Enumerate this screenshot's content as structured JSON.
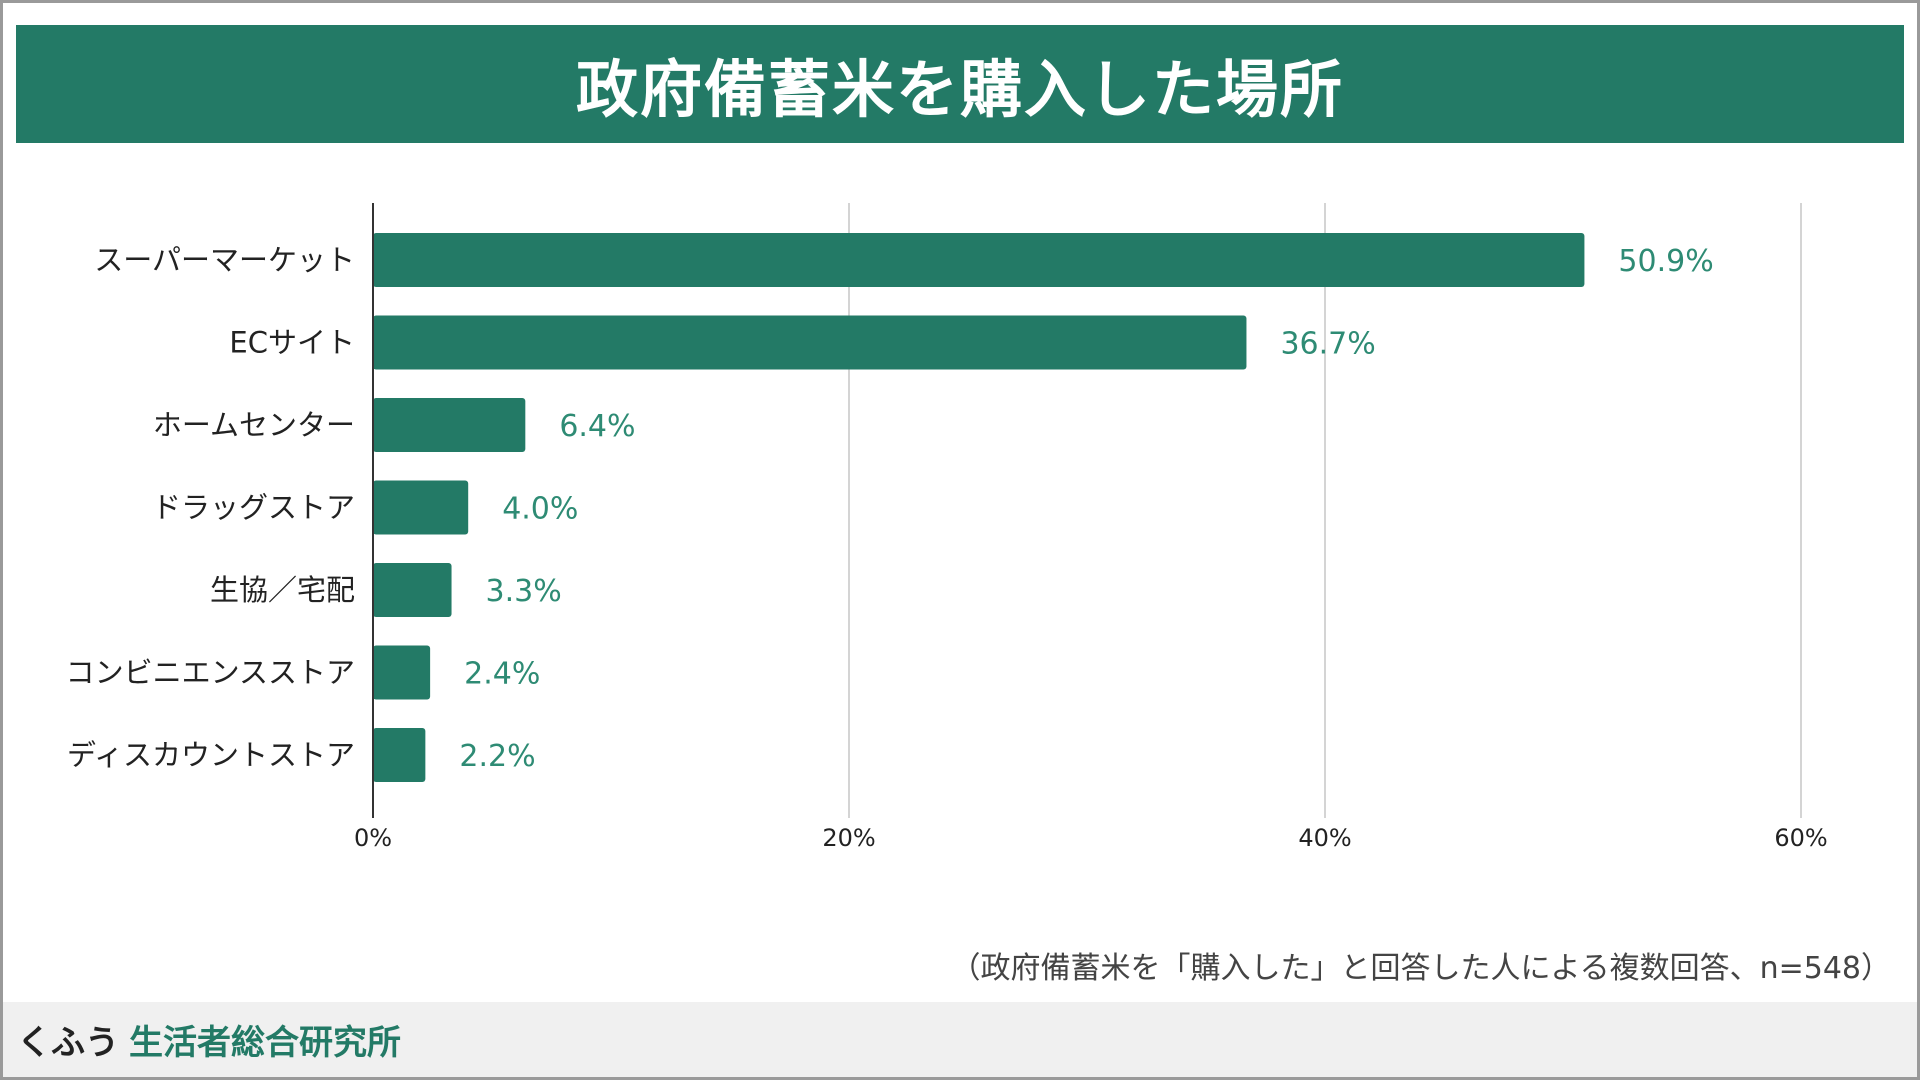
{
  "title": "政府備蓄米を購入した場所",
  "footnote": "（政府備蓄米を「購入した」と回答した人による複数回答、n=548）",
  "brand": {
    "prefix": "くふう",
    "name": "生活者総合研究所"
  },
  "colors": {
    "accent": "#237a66",
    "bar": "#237a66",
    "label": "#2e8b74"
  },
  "chart_data": {
    "type": "bar",
    "orientation": "horizontal",
    "title": "政府備蓄米を購入した場所",
    "categories": [
      "スーパーマーケット",
      "ECサイト",
      "ホームセンター",
      "ドラッグストア",
      "生協／宅配",
      "コンビニエンスストア",
      "ディスカウントストア"
    ],
    "values": [
      50.9,
      36.7,
      6.4,
      4.0,
      3.3,
      2.4,
      2.2
    ],
    "value_labels": [
      "50.9%",
      "36.7%",
      "6.4%",
      "4.0%",
      "3.3%",
      "2.4%",
      "2.2%"
    ],
    "xlim": [
      0,
      60
    ],
    "xticks": [
      0,
      20,
      40,
      60
    ],
    "xtick_labels": [
      "0%",
      "20%",
      "40%",
      "60%"
    ],
    "xlabel": "",
    "ylabel": "",
    "grid": true
  }
}
